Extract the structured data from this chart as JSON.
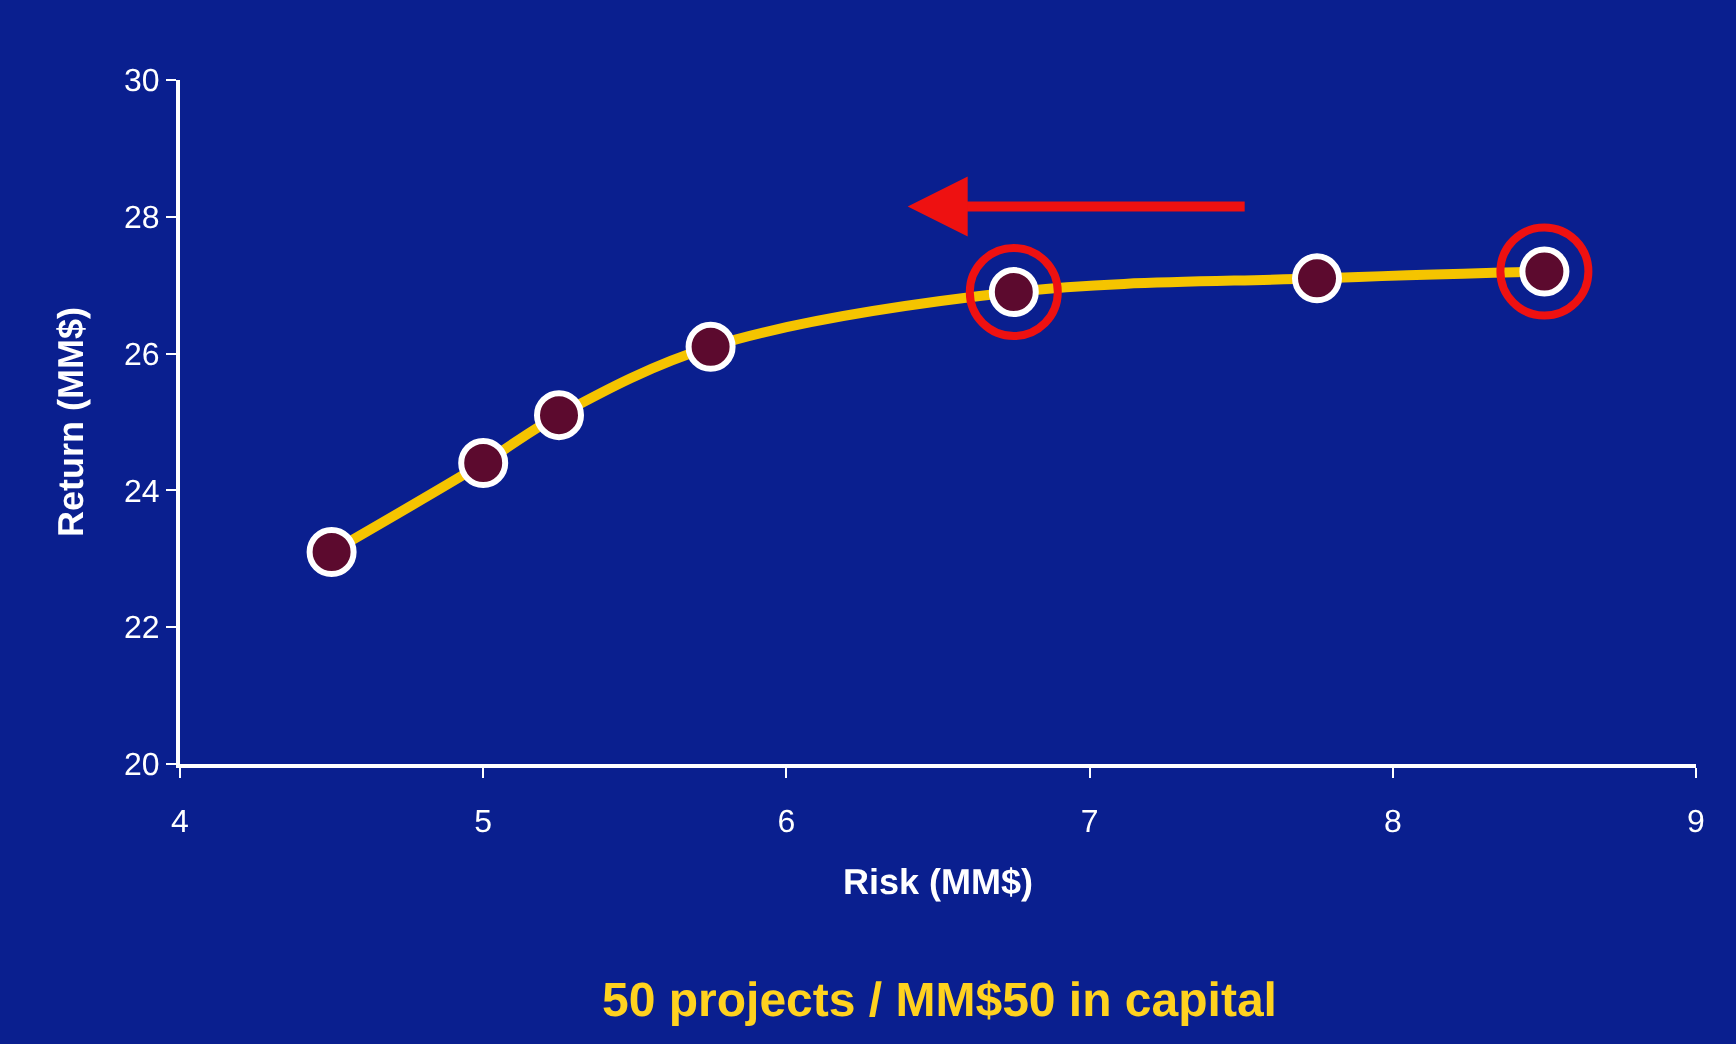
{
  "chart_data": {
    "type": "line",
    "xlabel": "Risk (MM$)",
    "ylabel": "Return (MM$)",
    "x": [
      4.5,
      5,
      5.25,
      5.75,
      6.75,
      7.75,
      8.5
    ],
    "series": [
      {
        "color": "#f5c400",
        "values": [
          23.1,
          24.4,
          25.1,
          26.1,
          26.9,
          27.1,
          27.2
        ]
      },
      {
        "type": "scatter",
        "color": "#ee1111",
        "values": [
          null,
          null,
          null,
          null,
          26.9,
          null,
          27.2
        ]
      }
    ],
    "xlim": [
      4,
      9
    ],
    "xticks": [
      4,
      5,
      6,
      7,
      8,
      9
    ],
    "ylim": [
      20,
      30
    ],
    "yticks": [
      20,
      22,
      24,
      26,
      28,
      30
    ],
    "grid": false,
    "marker": "circle",
    "annotations": [
      "50 projects / MM$50 in capital"
    ]
  }
}
